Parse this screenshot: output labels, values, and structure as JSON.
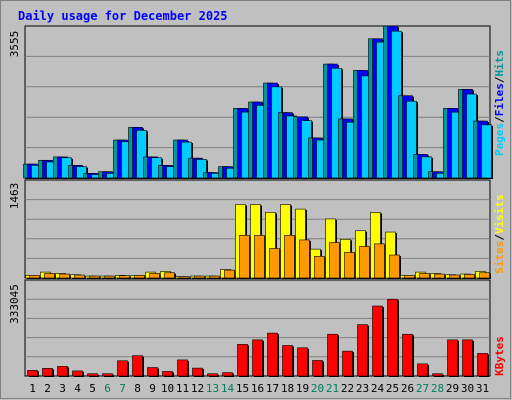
{
  "chart_data": {
    "type": "bar",
    "title": "Daily usage for December 2025",
    "categories": [
      "1",
      "2",
      "3",
      "4",
      "5",
      "6",
      "7",
      "8",
      "9",
      "10",
      "11",
      "12",
      "13",
      "14",
      "15",
      "16",
      "17",
      "18",
      "19",
      "20",
      "21",
      "22",
      "23",
      "24",
      "25",
      "26",
      "27",
      "28",
      "29",
      "30",
      "31"
    ],
    "weekend_days": [
      "6",
      "7",
      "13",
      "14",
      "20",
      "21",
      "27",
      "28"
    ],
    "panels": [
      {
        "id": "top",
        "ylim": [
          0,
          3555
        ],
        "max_tick_label": "3555",
        "legend": [
          "Pages",
          "/",
          "Files",
          "/",
          "Hits"
        ],
        "series": [
          {
            "name": "Hits",
            "color": "#009999",
            "values": [
              330,
              420,
              500,
              300,
              110,
              150,
              900,
              1200,
              500,
              300,
              900,
              470,
              130,
              270,
              1650,
              1800,
              2250,
              1550,
              1450,
              950,
              2700,
              1400,
              2550,
              3300,
              3600,
              1950,
              560,
              150,
              1650,
              2100,
              1350
            ]
          },
          {
            "name": "Files",
            "color": "#0000ff",
            "values": [
              330,
              420,
              500,
              300,
              110,
              150,
              900,
              1200,
              500,
              300,
              900,
              470,
              130,
              270,
              1650,
              1800,
              2250,
              1550,
              1450,
              950,
              2700,
              1400,
              2550,
              3300,
              3600,
              1950,
              560,
              150,
              1650,
              2100,
              1350
            ]
          },
          {
            "name": "Pages",
            "color": "#00ccff",
            "values": [
              300,
              380,
              480,
              270,
              80,
              110,
              860,
              1130,
              480,
              270,
              850,
              440,
              110,
              230,
              1560,
              1720,
              2160,
              1470,
              1360,
              900,
              2600,
              1320,
              2420,
              3220,
              3480,
              1820,
              500,
              110,
              1560,
              1990,
              1260
            ]
          }
        ]
      },
      {
        "id": "middle",
        "ylim": [
          0,
          1463
        ],
        "max_tick_label": "1463",
        "legend": [
          "Sites",
          "/",
          "Visits"
        ],
        "series": [
          {
            "name": "Visits",
            "color": "#ffff00",
            "values": [
              40,
              90,
              70,
              50,
              30,
              30,
              40,
              40,
              90,
              100,
              20,
              30,
              30,
              130,
              1120,
              1120,
              1000,
              1120,
              1050,
              440,
              900,
              590,
              720,
              1000,
              700,
              40,
              90,
              70,
              50,
              60,
              100
            ]
          },
          {
            "name": "Sites",
            "color": "#ff9900",
            "values": [
              40,
              70,
              60,
              45,
              30,
              30,
              35,
              40,
              70,
              80,
              20,
              30,
              30,
              120,
              650,
              650,
              450,
              650,
              580,
              330,
              540,
              390,
              480,
              520,
              350,
              40,
              70,
              60,
              45,
              55,
              80
            ]
          }
        ]
      },
      {
        "id": "bottom",
        "ylim": [
          0,
          333045
        ],
        "max_tick_label": "333045",
        "legend": [
          "KBytes"
        ],
        "series": [
          {
            "name": "KBytes",
            "color": "#ff0000",
            "values": [
              20000,
              27000,
              34000,
              18000,
              8000,
              8000,
              54000,
              72000,
              30000,
              16000,
              57000,
              28000,
              8000,
              12000,
              112000,
              128000,
              152000,
              108000,
              100000,
              55000,
              148000,
              88000,
              182000,
              248000,
              272000,
              148000,
              43000,
              8000,
              128000,
              128000,
              80000
            ]
          }
        ]
      }
    ]
  }
}
